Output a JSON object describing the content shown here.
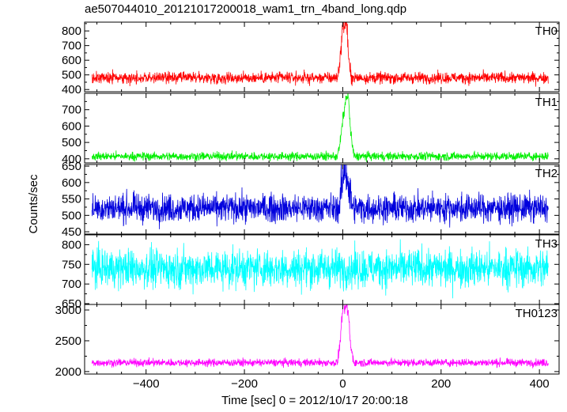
{
  "chart_data": {
    "type": "line",
    "title": "ae507044010_20121017200018_wam1_trn_4band_long.qdp",
    "xlabel": "Time [sec] 0 = 2012/10/17 20:00:18",
    "ylabel": "Counts/sec",
    "xlim": [
      -525,
      440
    ],
    "xticks": [
      -400,
      -200,
      0,
      200,
      400
    ],
    "panels": [
      {
        "name": "TH0",
        "color": "#ff0000",
        "ylim": [
          385,
          860
        ],
        "yticks": [
          400,
          500,
          600,
          700,
          800
        ],
        "baseline": 480,
        "noise": 38,
        "burst": [
          [
            -10,
            500
          ],
          [
            -5,
            620
          ],
          [
            -2,
            760
          ],
          [
            0,
            850
          ],
          [
            3,
            840
          ],
          [
            6,
            860
          ],
          [
            9,
            820
          ],
          [
            12,
            600
          ],
          [
            16,
            500
          ],
          [
            22,
            480
          ]
        ]
      },
      {
        "name": "TH1",
        "color": "#00ee00",
        "ylim": [
          375,
          800
        ],
        "yticks": [
          400,
          500,
          600,
          700
        ],
        "baseline": 415,
        "noise": 25,
        "burst": [
          [
            -10,
            430
          ],
          [
            -5,
            500
          ],
          [
            0,
            640
          ],
          [
            4,
            720
          ],
          [
            8,
            790
          ],
          [
            12,
            760
          ],
          [
            16,
            560
          ],
          [
            22,
            430
          ]
        ]
      },
      {
        "name": "TH2",
        "color": "#0000dd",
        "ylim": [
          443,
          655
        ],
        "yticks": [
          450,
          500,
          550,
          600,
          650
        ],
        "baseline": 522,
        "noise": 42,
        "burst": [
          [
            -5,
            560
          ],
          [
            0,
            610
          ],
          [
            4,
            650
          ],
          [
            8,
            630
          ],
          [
            12,
            580
          ],
          [
            20,
            530
          ]
        ]
      },
      {
        "name": "TH3",
        "color": "#00ffff",
        "ylim": [
          648,
          825
        ],
        "yticks": [
          650,
          700,
          750,
          800
        ],
        "baseline": 740,
        "noise": 48,
        "burst": []
      },
      {
        "name": "TH0123",
        "color": "#ff00ff",
        "ylim": [
          1960,
          3090
        ],
        "yticks": [
          2000,
          2500,
          3000
        ],
        "baseline": 2145,
        "noise": 60,
        "burst": [
          [
            -10,
            2200
          ],
          [
            -5,
            2500
          ],
          [
            -2,
            2850
          ],
          [
            0,
            3050
          ],
          [
            4,
            3000
          ],
          [
            8,
            3080
          ],
          [
            12,
            2900
          ],
          [
            16,
            2400
          ],
          [
            22,
            2200
          ]
        ]
      }
    ]
  }
}
